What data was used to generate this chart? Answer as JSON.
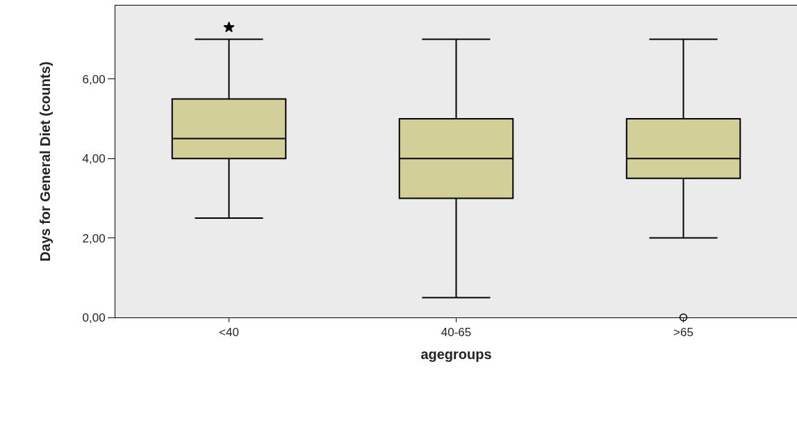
{
  "chart_data": {
    "type": "box",
    "xlabel": "agegroups",
    "ylabel": "Days for General Diet (counts)",
    "categories": [
      "<40",
      "40-65",
      ">65"
    ],
    "boxes": [
      {
        "low": 2.5,
        "q1": 4,
        "median": 4.5,
        "q3": 5.5,
        "high": 7
      },
      {
        "low": 0.5,
        "q1": 3,
        "median": 4,
        "q3": 5,
        "high": 7
      },
      {
        "low": 2,
        "q1": 3.5,
        "median": 4,
        "q3": 5,
        "high": 7,
        "outliers": [
          0
        ]
      }
    ],
    "series": [
      {
        "type": "scatter",
        "x": [
          "<40"
        ],
        "values": [
          7.3
        ],
        "marker": "star",
        "color": "#000000"
      }
    ],
    "color": "#d3cf98",
    "marker": "circle",
    "ylim": [
      0,
      7.85
    ],
    "yticks": [
      {
        "value": 0,
        "label": "0,00"
      },
      {
        "value": 2,
        "label": "2,00"
      },
      {
        "value": 4,
        "label": "4,00"
      },
      {
        "value": 6,
        "label": "6,00"
      }
    ],
    "grid": false
  }
}
